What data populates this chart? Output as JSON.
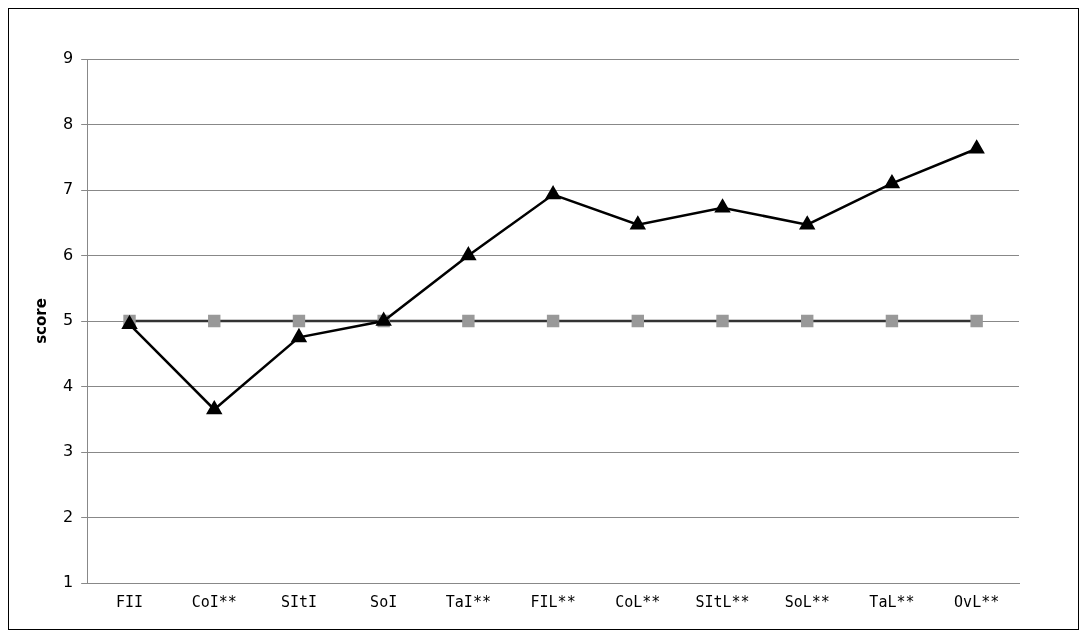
{
  "chart_data": {
    "type": "line",
    "ylabel": "score",
    "categories": [
      "FII",
      "CoI**",
      "SItI",
      "SoI",
      "TaI**",
      "FIL**",
      "CoL**",
      "SItL**",
      "SoL**",
      "TaL**",
      "OvL**"
    ],
    "series": [
      {
        "color": "#000000",
        "marker": "triangle",
        "values": [
          4.95,
          3.65,
          4.75,
          5.0,
          6.0,
          6.93,
          6.47,
          6.73,
          6.47,
          7.1,
          7.63
        ]
      },
      {
        "color": "#999999",
        "marker": "square",
        "values": [
          5,
          5,
          5,
          5,
          5,
          5,
          5,
          5,
          5,
          5,
          5
        ]
      }
    ],
    "ylim": [
      1,
      9
    ],
    "yticks": [
      1,
      2,
      3,
      4,
      5,
      6,
      7,
      8,
      9
    ],
    "grid": "y",
    "legend": false
  }
}
